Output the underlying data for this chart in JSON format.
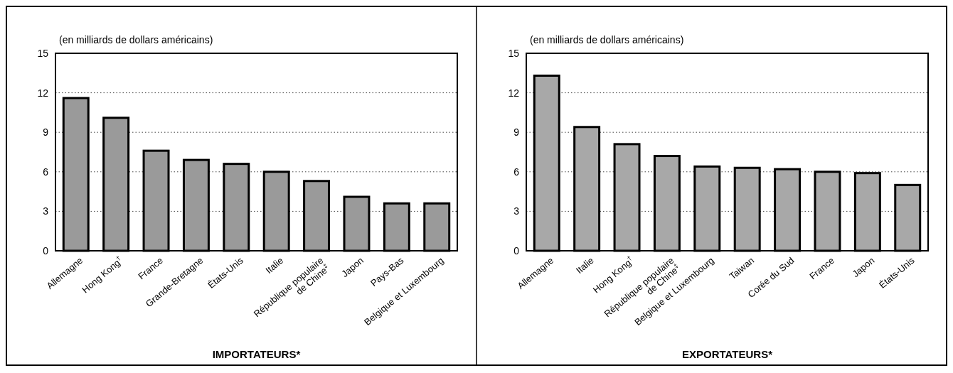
{
  "chart_data": [
    {
      "type": "bar",
      "ylabel": "(en milliards de dollars américains)",
      "xlabel": "IMPORTATEURS*",
      "categories": [
        "Allemagne",
        "Hong Kong$^{†}$",
        "France",
        "Grande-Bretagne",
        "États-Unis",
        "Italie",
        "République populaire\nde Chine$^{‡}$",
        "Japon",
        "Pays-Bas",
        "Belgique et Luxembourg"
      ],
      "values": [
        11.6,
        10.1,
        7.6,
        6.9,
        6.6,
        6.0,
        5.3,
        4.1,
        3.6,
        3.6
      ],
      "color": "#9a9a9a",
      "ylim": [
        0,
        15
      ],
      "yticks": [
        0,
        3,
        6,
        9,
        12,
        15
      ],
      "grid": "y"
    },
    {
      "type": "bar",
      "ylabel": "(en milliards de dollars américains)",
      "xlabel": "EXPORTATEURS*",
      "categories": [
        "Allemagne",
        "Italie",
        "Hong Kong$^{†}$",
        "République populaire\nde Chine$^{‡}$",
        "Belgique et Luxembourg",
        "Taiwan",
        "Corée du Sud",
        "France",
        "Japon",
        "États-Unis"
      ],
      "values": [
        13.3,
        9.4,
        8.1,
        7.2,
        6.4,
        6.3,
        6.2,
        6.0,
        5.9,
        5.0
      ],
      "color": "#a8a8a8",
      "ylim": [
        0,
        15
      ],
      "yticks": [
        0,
        3,
        6,
        9,
        12,
        15
      ],
      "grid": "y"
    }
  ]
}
